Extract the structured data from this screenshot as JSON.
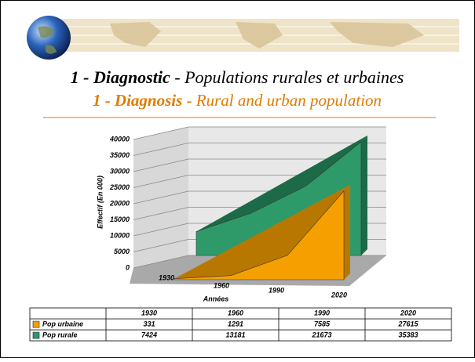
{
  "slide": {
    "title_fr": {
      "lead": "1 - Diagnostic",
      "rest": "- Populations rurales et urbaines"
    },
    "title_en": {
      "lead": "1 - Diagnosis",
      "rest": "- Rural and urban population"
    }
  },
  "chart_data": {
    "type": "area3d",
    "y_label": "Effectif (En 000)",
    "x_label": "Années",
    "categories": [
      "1930",
      "1960",
      "1990",
      "2020"
    ],
    "series": [
      {
        "name": "Pop urbaine",
        "color": "#f5a000",
        "values": [
          331,
          1291,
          7585,
          27615
        ]
      },
      {
        "name": "Pop rurale",
        "color": "#2e9a6a",
        "values": [
          7424,
          13181,
          21673,
          35383
        ]
      }
    ],
    "ylim": [
      0,
      40000
    ],
    "yticks": [
      0,
      5000,
      10000,
      15000,
      20000,
      25000,
      30000,
      35000,
      40000
    ],
    "grid": true
  }
}
